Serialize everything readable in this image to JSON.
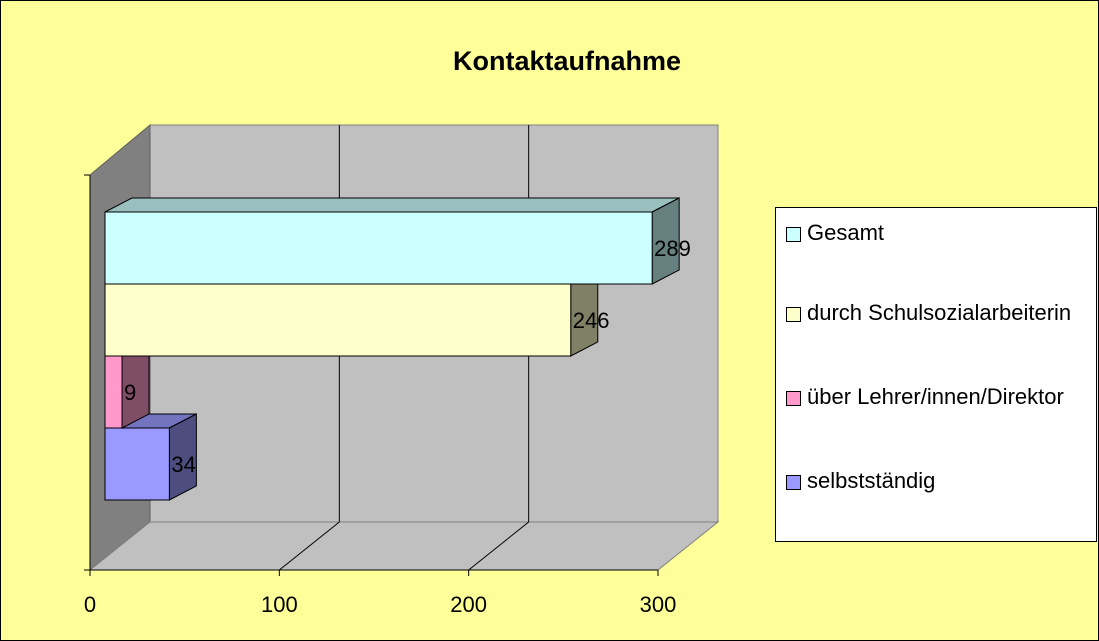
{
  "chart_data": {
    "type": "bar3d_horizontal",
    "title": "Kontaktaufnahme",
    "categories": [
      null
    ],
    "series": [
      {
        "name": "Gesamt",
        "color": "#ccffff",
        "values": [
          289
        ]
      },
      {
        "name": "durch Schulsozialarbeiterin",
        "color": "#ffffcc",
        "values": [
          246
        ]
      },
      {
        "name": "über Lehrer/innen/Direktor",
        "color": "#ff99cc",
        "values": [
          9
        ]
      },
      {
        "name": "selbstständig",
        "color": "#9999ff",
        "values": [
          34
        ]
      }
    ],
    "xlim": [
      0,
      300
    ],
    "xticks": [
      0,
      100,
      200,
      300
    ],
    "grid": true,
    "legend": "right"
  }
}
